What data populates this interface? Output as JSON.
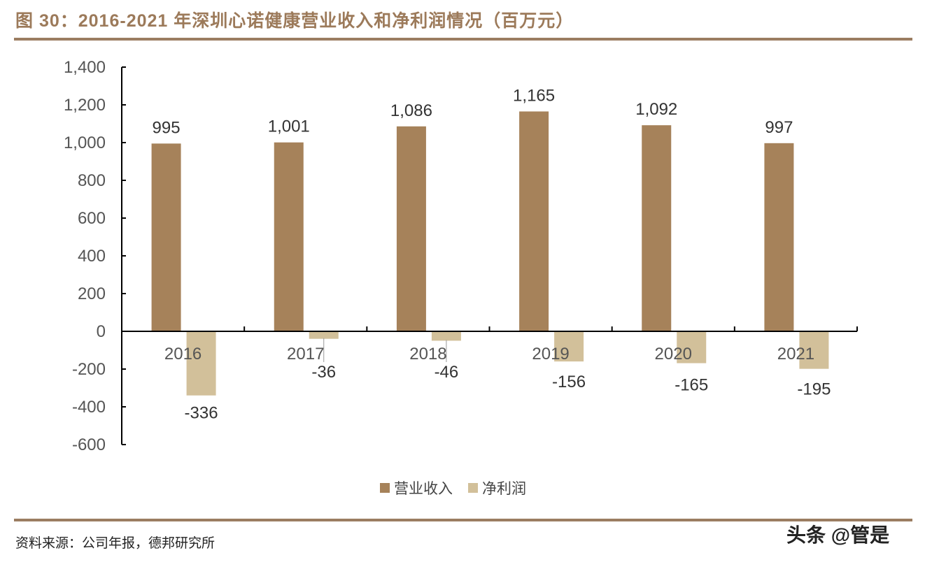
{
  "header": {
    "title": "图 30：2016-2021 年深圳心诺健康营业收入和净利润情况（百万元）"
  },
  "footer": {
    "source": "资料来源：公司年报，德邦研究所",
    "watermark": "头条 @管是"
  },
  "colors": {
    "revenue": "#a6825a",
    "net_profit": "#d2c09a",
    "rule": "#9b7d61",
    "title": "#9c7a5a"
  },
  "legend": {
    "revenue_label": "营业收入",
    "net_profit_label": "净利润"
  },
  "chart_data": {
    "type": "bar",
    "title": "2016-2021 年深圳心诺健康营业收入和净利润情况（百万元）",
    "xlabel": "",
    "ylabel": "",
    "categories": [
      "2016",
      "2017",
      "2018",
      "2019",
      "2020",
      "2021"
    ],
    "series": [
      {
        "name": "营业收入",
        "values": [
          995,
          1001,
          1086,
          1165,
          1092,
          997
        ],
        "labels": [
          "995",
          "1,001",
          "1,086",
          "1,165",
          "1,092",
          "997"
        ]
      },
      {
        "name": "净利润",
        "values": [
          -336,
          -36,
          -46,
          -156,
          -165,
          -195
        ],
        "labels": [
          "-336",
          "-36",
          "-46",
          "-156",
          "-165",
          "-195"
        ]
      }
    ],
    "ylim": [
      -600,
      1400
    ],
    "yticks": [
      1400,
      1200,
      1000,
      800,
      600,
      400,
      200,
      0,
      -200,
      -400,
      -600
    ],
    "ytick_labels": [
      "1,400",
      "1,200",
      "1,000",
      "800",
      "600",
      "400",
      "200",
      "0",
      "-200",
      "-400",
      "-600"
    ],
    "grid": false,
    "legend_position": "bottom"
  }
}
